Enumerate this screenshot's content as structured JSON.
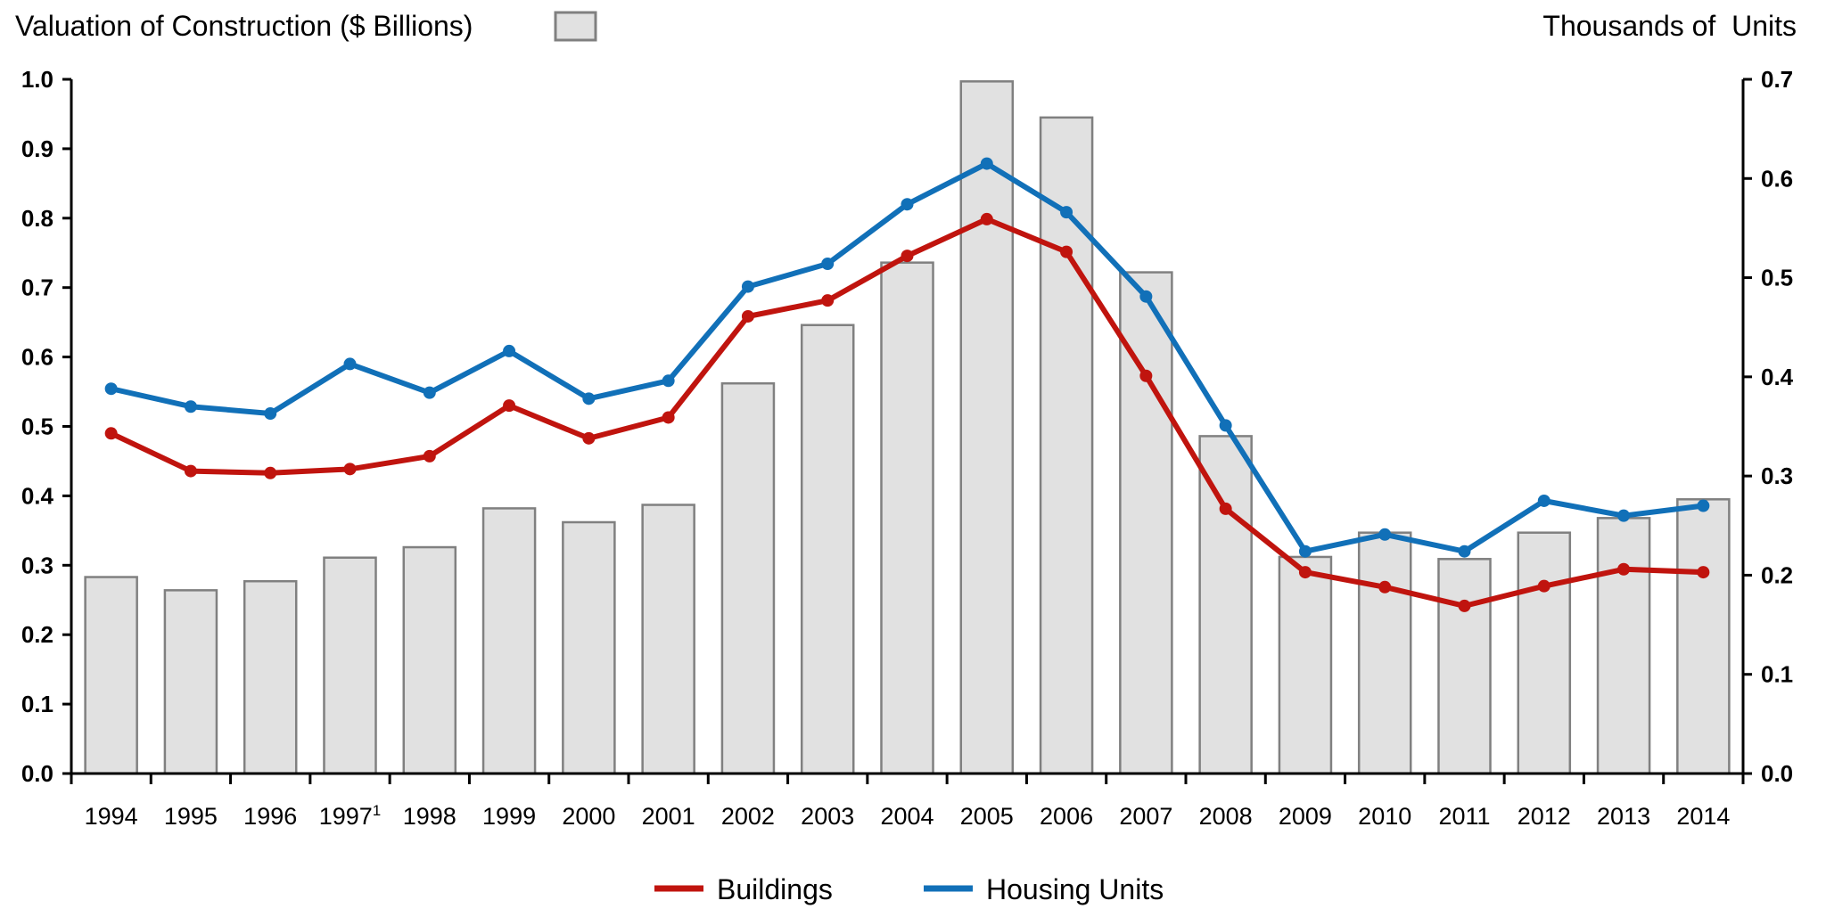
{
  "chart_data": {
    "type": "bar+line",
    "title": "",
    "left_axis": {
      "label": "Valuation of Construction ($ Billions)",
      "ylim": [
        0.0,
        1.0
      ],
      "ticks": [
        "0.0",
        "0.1",
        "0.2",
        "0.3",
        "0.4",
        "0.5",
        "0.6",
        "0.7",
        "0.8",
        "0.9",
        "1.0"
      ]
    },
    "right_axis": {
      "label": "Thousands of  Units",
      "ylim": [
        0.0,
        0.7
      ],
      "ticks": [
        "0.0",
        "0.1",
        "0.2",
        "0.3",
        "0.4",
        "0.5",
        "0.6",
        "0.7"
      ]
    },
    "categories": [
      "1994",
      "1995",
      "1996",
      "1997",
      "1998",
      "1999",
      "2000",
      "2001",
      "2002",
      "2003",
      "2004",
      "2005",
      "2006",
      "2007",
      "2008",
      "2009",
      "2010",
      "2011",
      "2012",
      "2013",
      "2014"
    ],
    "category_footnotes": {
      "1997": "1"
    },
    "bar_series": {
      "name": "Valuation of Construction ($ Billions)",
      "axis": "left",
      "color": "#e1e1e1",
      "stroke": "#808080",
      "values": [
        0.283,
        0.264,
        0.277,
        0.311,
        0.326,
        0.382,
        0.362,
        0.387,
        0.562,
        0.646,
        0.736,
        0.997,
        0.945,
        0.722,
        0.486,
        0.312,
        0.347,
        0.309,
        0.347,
        0.368,
        0.395
      ]
    },
    "series": [
      {
        "name": "Buildings",
        "axis": "right",
        "color": "#c0140e",
        "values": [
          0.343,
          0.305,
          0.303,
          0.307,
          0.32,
          0.371,
          0.338,
          0.359,
          0.461,
          0.477,
          0.522,
          0.559,
          0.526,
          0.401,
          0.267,
          0.203,
          0.188,
          0.169,
          0.189,
          0.206,
          0.203
        ]
      },
      {
        "name": "Housing Units",
        "axis": "right",
        "color": "#1170b8",
        "values": [
          0.388,
          0.37,
          0.363,
          0.413,
          0.384,
          0.426,
          0.378,
          0.396,
          0.491,
          0.514,
          0.574,
          0.615,
          0.566,
          0.481,
          0.351,
          0.224,
          0.241,
          0.224,
          0.275,
          0.26,
          0.27
        ]
      }
    ],
    "legend": {
      "placement": "bottom-center",
      "items": [
        {
          "label": "Buildings",
          "color": "#c0140e"
        },
        {
          "label": "Housing Units",
          "color": "#1170b8"
        }
      ]
    },
    "grid": false,
    "xlabel": ""
  }
}
